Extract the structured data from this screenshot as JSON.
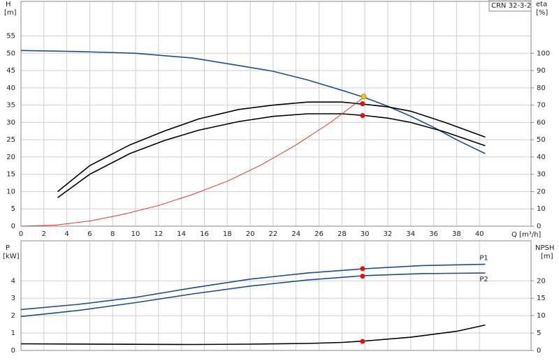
{
  "chart_data": [
    {
      "type": "line",
      "title": "CRN 32-3-2",
      "x_label": "Q [m³/h]",
      "y_label": "H",
      "y_unit": "[m]",
      "y2_label": "eta",
      "y2_unit": "[%]",
      "xlim": [
        0,
        44.5
      ],
      "xticks": [
        0,
        2,
        4,
        6,
        8,
        10,
        12,
        14,
        16,
        18,
        20,
        22,
        24,
        26,
        28,
        30,
        32,
        34,
        36,
        38,
        40
      ],
      "ylim": [
        0,
        65
      ],
      "yticks": [
        0,
        5,
        10,
        15,
        20,
        25,
        30,
        35,
        40,
        45,
        50,
        55
      ],
      "y2lim": [
        0,
        130
      ],
      "y2ticks": [
        0,
        10,
        20,
        30,
        40,
        50,
        60,
        70,
        80,
        90,
        100
      ],
      "grid": true,
      "series": [
        {
          "color": "#1f4e8c",
          "x": [
            0,
            5,
            10,
            15,
            18,
            22,
            25,
            28,
            30,
            32,
            34,
            36,
            38,
            40.5
          ],
          "values": [
            50.8,
            50.5,
            50,
            48.6,
            47,
            44.8,
            42.3,
            39.3,
            37.2,
            34.7,
            31.8,
            28.6,
            25,
            21
          ]
        },
        {
          "color": "#000000",
          "axis": "y2",
          "x": [
            3.2,
            6,
            9.5,
            12.5,
            15.5,
            19,
            22,
            25,
            28,
            30,
            32,
            34,
            37,
            40.5
          ],
          "values": [
            20,
            35,
            47,
            55,
            62,
            67.5,
            70,
            71.8,
            71.8,
            70.5,
            69,
            66.5,
            60,
            51.5
          ]
        },
        {
          "color": "#000000",
          "axis": "y2",
          "x": [
            3.2,
            6,
            9.5,
            12.5,
            15.5,
            19,
            22,
            25,
            28,
            30,
            32,
            34,
            37,
            40.5
          ],
          "values": [
            16.5,
            30,
            42,
            49.5,
            55.5,
            60.5,
            63.5,
            65,
            65,
            64,
            62.5,
            60,
            54.5,
            46.5
          ]
        },
        {
          "color": "#e8362a",
          "x": [
            0,
            3,
            6,
            9,
            12,
            15,
            18,
            21,
            24,
            27,
            29,
            30
          ],
          "values": [
            0,
            0.3,
            1.5,
            3.5,
            6,
            9.2,
            13,
            17.8,
            23.5,
            30,
            35,
            37.5
          ]
        }
      ],
      "points": [
        {
          "x": 29.9,
          "y": 37.5,
          "color": "#f5c518"
        },
        {
          "x": 29.8,
          "y": 70.8,
          "color": "#e01010",
          "axis": "y2"
        },
        {
          "x": 29.8,
          "y": 64,
          "color": "#e01010",
          "axis": "y2"
        }
      ]
    },
    {
      "type": "line",
      "y_label": "P",
      "y_unit": "[kW]",
      "y2_label": "NPSH",
      "y2_unit": "[m]",
      "xlim": [
        0,
        44.5
      ],
      "ylim": [
        0,
        6.3
      ],
      "yticks": [
        0,
        1,
        2,
        3,
        4
      ],
      "y2lim": [
        0,
        31.5
      ],
      "y2ticks": [
        0,
        5,
        10,
        15,
        20
      ],
      "grid": true,
      "series": [
        {
          "name": "P1",
          "color": "#1f4e8c",
          "x": [
            0,
            5,
            10,
            15,
            20,
            25,
            30,
            35,
            40.5
          ],
          "values": [
            2.35,
            2.65,
            3.05,
            3.6,
            4.1,
            4.45,
            4.7,
            4.88,
            4.95
          ]
        },
        {
          "name": "P2",
          "color": "#1f4e8c",
          "x": [
            0,
            5,
            10,
            15,
            20,
            25,
            30,
            35,
            40.5
          ],
          "values": [
            1.95,
            2.3,
            2.75,
            3.25,
            3.7,
            4.05,
            4.3,
            4.42,
            4.45
          ]
        },
        {
          "color": "#000000",
          "axis": "y2",
          "x": [
            0,
            15,
            20,
            25,
            28,
            30,
            34,
            38,
            40.5
          ],
          "values": [
            1.9,
            1.7,
            1.8,
            2,
            2.3,
            2.7,
            3.8,
            5.5,
            7.3
          ]
        }
      ],
      "points": [
        {
          "x": 29.8,
          "y": 4.7,
          "color": "#e01010"
        },
        {
          "x": 29.8,
          "y": 4.27,
          "color": "#e01010"
        },
        {
          "x": 29.8,
          "y": 2.6,
          "color": "#e01010",
          "axis": "y2"
        }
      ]
    }
  ]
}
